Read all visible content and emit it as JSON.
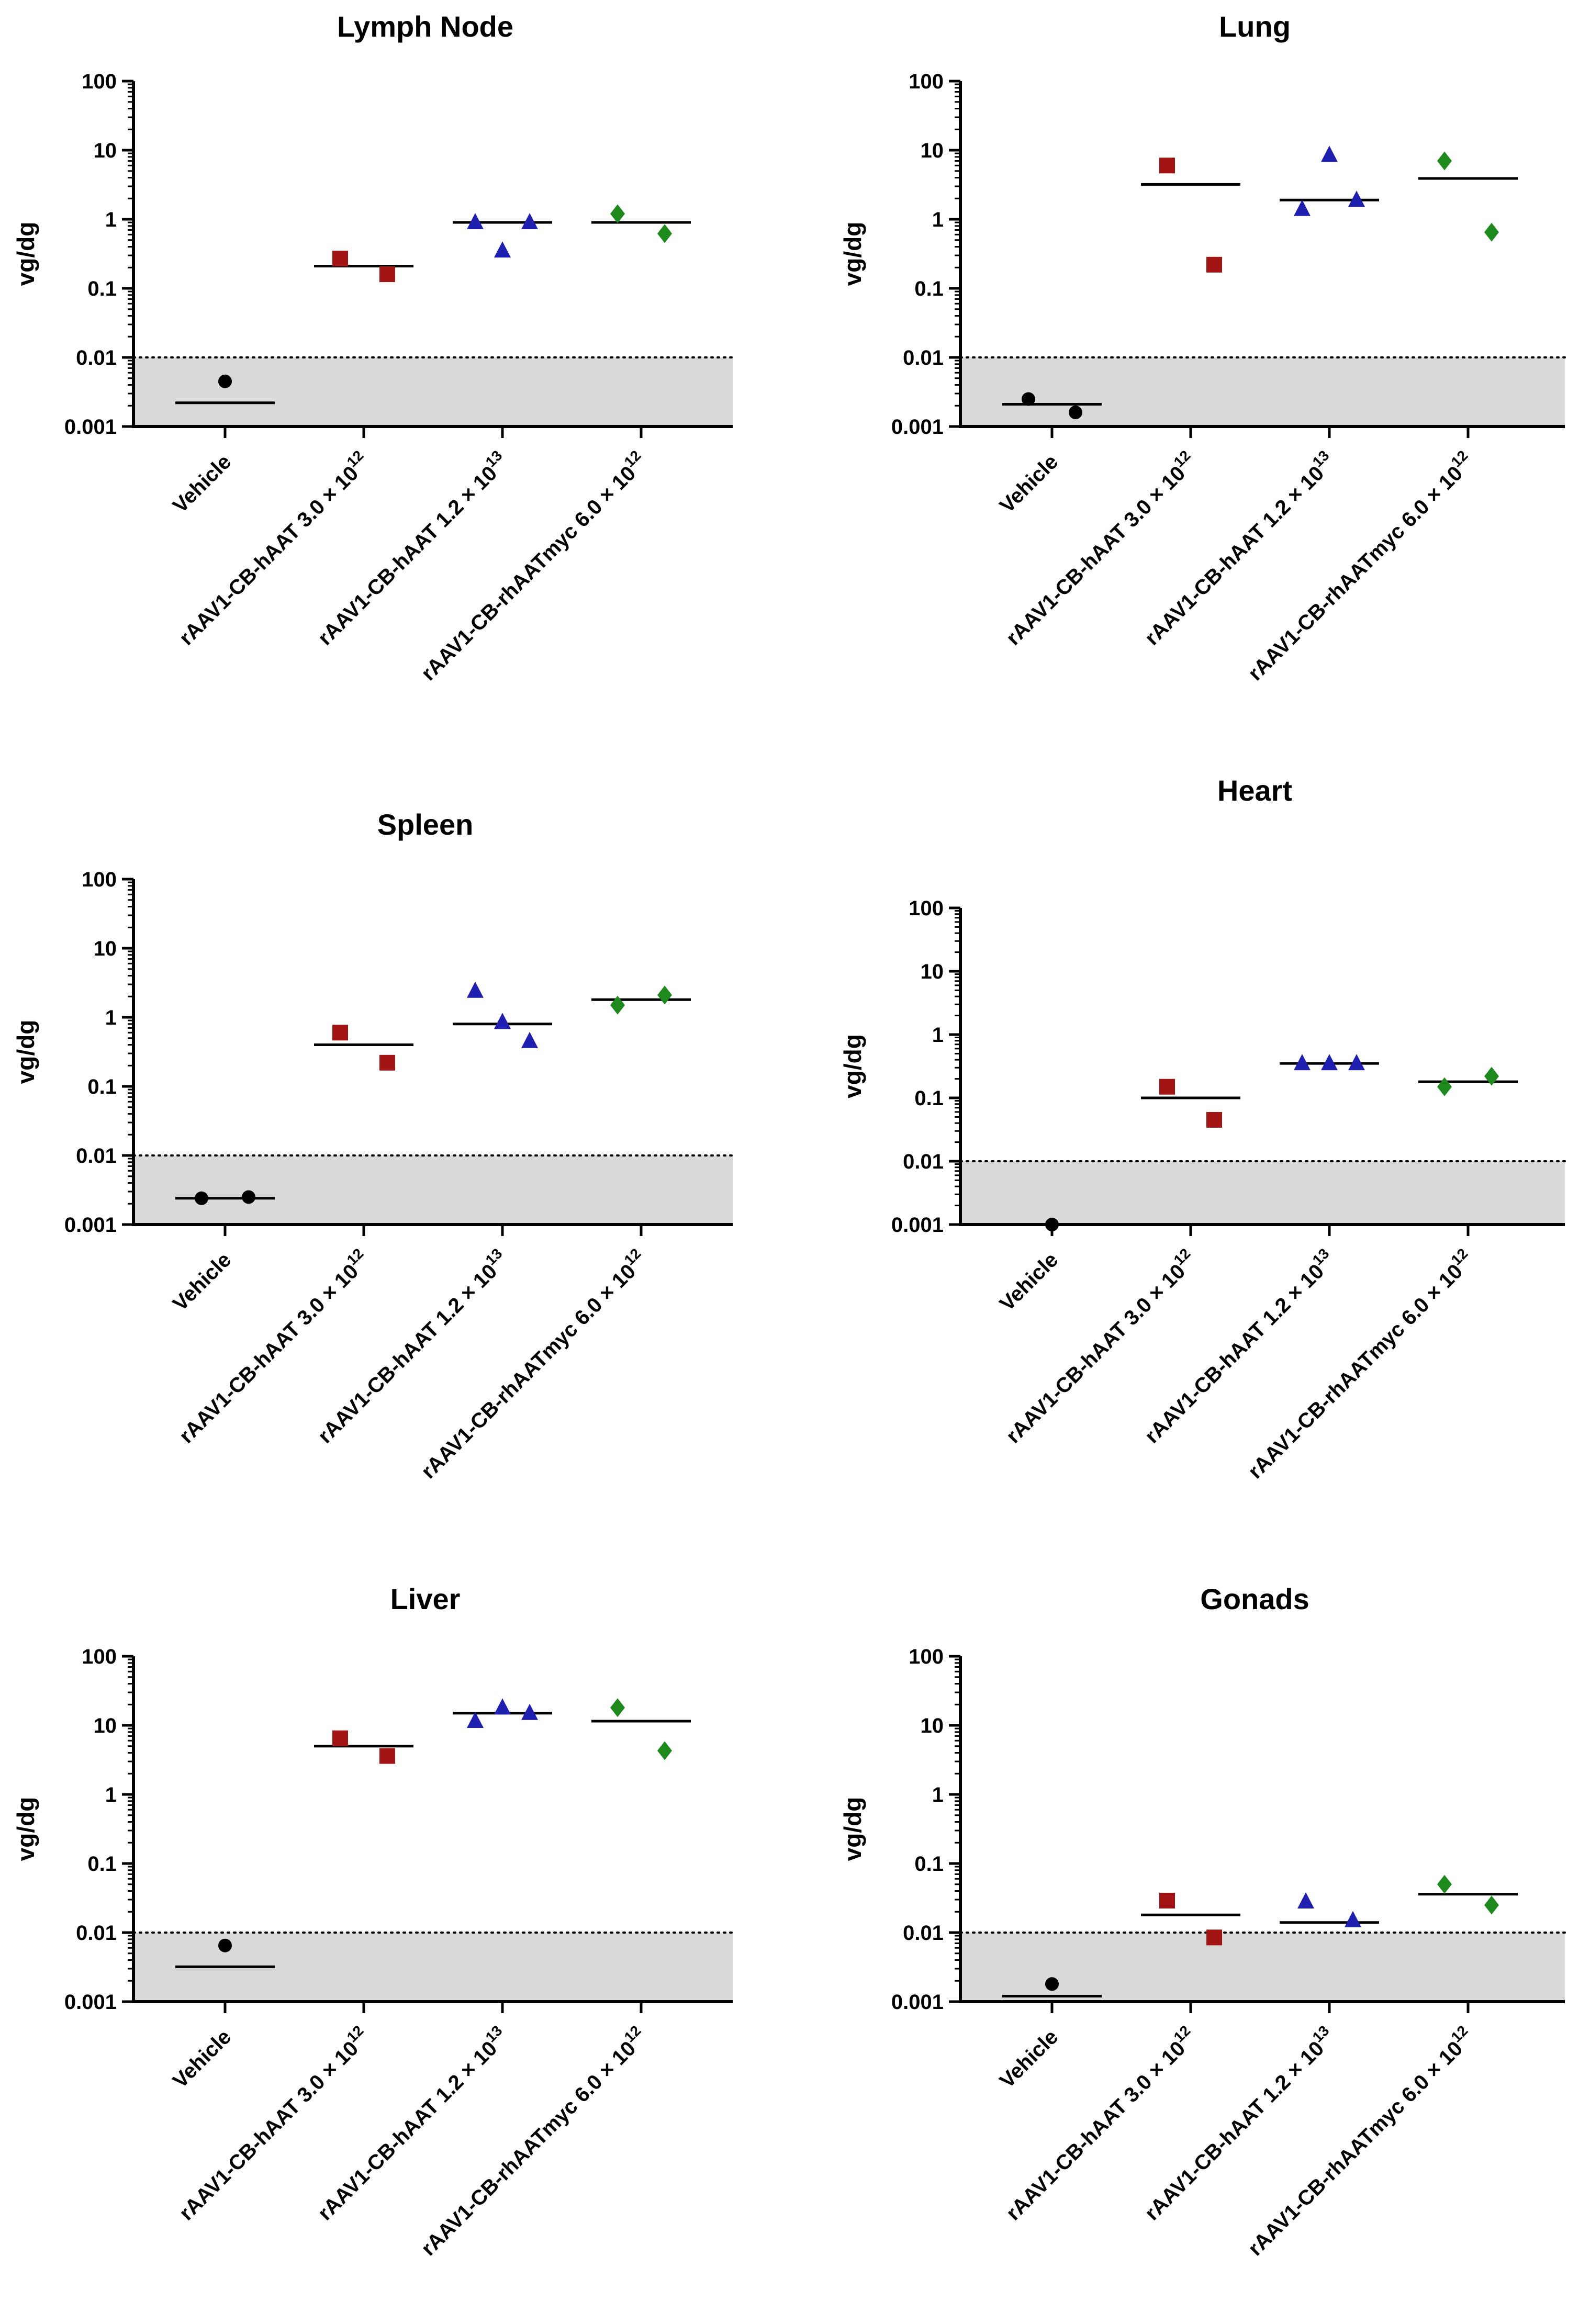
{
  "figure": {
    "y_axis_ticks": [
      "100",
      "10",
      "1",
      "0.1",
      "0.01",
      "0.001"
    ]
  },
  "chart_data": [
    {
      "type": "scatter",
      "title": "Lymph Node",
      "ylabel": "vg/dg",
      "yscale": "log",
      "ylim": [
        0.001,
        100
      ],
      "lloq": 0.01,
      "categories": [
        {
          "name": "Vehicle",
          "dose": "",
          "exp": ""
        },
        {
          "name": "rAAV1-CB-hAAT",
          "dose": "3.0 × 10",
          "exp": "12"
        },
        {
          "name": "rAAV1-CB-hAAT",
          "dose": "1.2 × 10",
          "exp": "13"
        },
        {
          "name": "rAAV1-CB-rhAATmyc",
          "dose": "6.0 × 10",
          "exp": "12"
        }
      ],
      "series": [
        {
          "name": "Vehicle",
          "marker": "circle",
          "color": "#000000",
          "points": [
            0.0045
          ],
          "mean": 0.0022
        },
        {
          "name": "rAAV1-CB-hAAT 3.0 × 10^12",
          "marker": "square",
          "color": "#a31515",
          "points": [
            0.27,
            0.16
          ],
          "mean": 0.21
        },
        {
          "name": "rAAV1-CB-hAAT 1.2 × 10^13",
          "marker": "triangle",
          "color": "#1f1fb0",
          "points": [
            0.9,
            0.35,
            0.9
          ],
          "mean": 0.9
        },
        {
          "name": "rAAV1-CB-rhAATmyc 6.0 × 10^12",
          "marker": "diamond",
          "color": "#1e8a1e",
          "points": [
            1.2,
            0.62
          ],
          "mean": 0.9
        }
      ]
    },
    {
      "type": "scatter",
      "title": "Lung",
      "ylabel": "vg/dg",
      "yscale": "log",
      "ylim": [
        0.001,
        100
      ],
      "lloq": 0.01,
      "categories": [
        {
          "name": "Vehicle",
          "dose": "",
          "exp": ""
        },
        {
          "name": "rAAV1-CB-hAAT",
          "dose": "3.0 × 10",
          "exp": "12"
        },
        {
          "name": "rAAV1-CB-hAAT",
          "dose": "1.2 × 10",
          "exp": "13"
        },
        {
          "name": "rAAV1-CB-rhAATmyc",
          "dose": "6.0 × 10",
          "exp": "12"
        }
      ],
      "series": [
        {
          "name": "Vehicle",
          "marker": "circle",
          "color": "#000000",
          "points": [
            0.0025,
            0.0016
          ],
          "mean": 0.0021
        },
        {
          "name": "rAAV1-CB-hAAT 3.0 × 10^12",
          "marker": "square",
          "color": "#a31515",
          "points": [
            6.0,
            0.22
          ],
          "mean": 3.2
        },
        {
          "name": "rAAV1-CB-hAAT 1.2 × 10^13",
          "marker": "triangle",
          "color": "#1f1fb0",
          "points": [
            1.4,
            8.5,
            1.9
          ],
          "mean": 1.9
        },
        {
          "name": "rAAV1-CB-rhAATmyc 6.0 × 10^12",
          "marker": "diamond",
          "color": "#1e8a1e",
          "points": [
            7.0,
            0.65
          ],
          "mean": 3.9
        }
      ]
    },
    {
      "type": "scatter",
      "title": "Spleen",
      "ylabel": "vg/dg",
      "yscale": "log",
      "ylim": [
        0.001,
        100
      ],
      "lloq": 0.01,
      "categories": [
        {
          "name": "Vehicle",
          "dose": "",
          "exp": ""
        },
        {
          "name": "rAAV1-CB-hAAT",
          "dose": "3.0 × 10",
          "exp": "12"
        },
        {
          "name": "rAAV1-CB-hAAT",
          "dose": "1.2 × 10",
          "exp": "13"
        },
        {
          "name": "rAAV1-CB-rhAATmyc",
          "dose": "6.0 × 10",
          "exp": "12"
        }
      ],
      "series": [
        {
          "name": "Vehicle",
          "marker": "circle",
          "color": "#000000",
          "points": [
            0.0024,
            0.0025
          ],
          "mean": 0.0024
        },
        {
          "name": "rAAV1-CB-hAAT 3.0 × 10^12",
          "marker": "square",
          "color": "#a31515",
          "points": [
            0.6,
            0.22
          ],
          "mean": 0.4
        },
        {
          "name": "rAAV1-CB-hAAT 1.2 × 10^13",
          "marker": "triangle",
          "color": "#1f1fb0",
          "points": [
            2.4,
            0.85,
            0.45
          ],
          "mean": 0.8
        },
        {
          "name": "rAAV1-CB-rhAATmyc 6.0 × 10^12",
          "marker": "diamond",
          "color": "#1e8a1e",
          "points": [
            1.5,
            2.1
          ],
          "mean": 1.8
        }
      ]
    },
    {
      "type": "scatter",
      "title": "Heart",
      "ylabel": "vg/dg",
      "yscale": "log",
      "ylim": [
        0.001,
        100
      ],
      "lloq": 0.01,
      "categories": [
        {
          "name": "Vehicle",
          "dose": "",
          "exp": ""
        },
        {
          "name": "rAAV1-CB-hAAT",
          "dose": "3.0 × 10",
          "exp": "12"
        },
        {
          "name": "rAAV1-CB-hAAT",
          "dose": "1.2 × 10",
          "exp": "13"
        },
        {
          "name": "rAAV1-CB-rhAATmyc",
          "dose": "6.0 × 10",
          "exp": "12"
        }
      ],
      "series": [
        {
          "name": "Vehicle",
          "marker": "circle",
          "color": "#000000",
          "points": [
            0.001
          ],
          "mean": null
        },
        {
          "name": "rAAV1-CB-hAAT 3.0 × 10^12",
          "marker": "square",
          "color": "#a31515",
          "points": [
            0.15,
            0.045
          ],
          "mean": 0.1
        },
        {
          "name": "rAAV1-CB-hAAT 1.2 × 10^13",
          "marker": "triangle",
          "color": "#1f1fb0",
          "points": [
            0.35,
            0.35,
            0.35
          ],
          "mean": 0.35
        },
        {
          "name": "rAAV1-CB-rhAATmyc 6.0 × 10^12",
          "marker": "diamond",
          "color": "#1e8a1e",
          "points": [
            0.15,
            0.22
          ],
          "mean": 0.18
        }
      ]
    },
    {
      "type": "scatter",
      "title": "Liver",
      "ylabel": "vg/dg",
      "yscale": "log",
      "ylim": [
        0.001,
        100
      ],
      "lloq": 0.01,
      "categories": [
        {
          "name": "Vehicle",
          "dose": "",
          "exp": ""
        },
        {
          "name": "rAAV1-CB-hAAT",
          "dose": "3.0 × 10",
          "exp": "12"
        },
        {
          "name": "rAAV1-CB-hAAT",
          "dose": "1.2 × 10",
          "exp": "13"
        },
        {
          "name": "rAAV1-CB-rhAATmyc",
          "dose": "6.0 × 10",
          "exp": "12"
        }
      ],
      "series": [
        {
          "name": "Vehicle",
          "marker": "circle",
          "color": "#000000",
          "points": [
            0.0065
          ],
          "mean": 0.0032
        },
        {
          "name": "rAAV1-CB-hAAT 3.0 × 10^12",
          "marker": "square",
          "color": "#a31515",
          "points": [
            6.5,
            3.6
          ],
          "mean": 5.0
        },
        {
          "name": "rAAV1-CB-hAAT 1.2 × 10^13",
          "marker": "triangle",
          "color": "#1f1fb0",
          "points": [
            11.5,
            18.0,
            15.0
          ],
          "mean": 15.0
        },
        {
          "name": "rAAV1-CB-rhAATmyc 6.0 × 10^12",
          "marker": "diamond",
          "color": "#1e8a1e",
          "points": [
            18.0,
            4.3
          ],
          "mean": 11.5
        }
      ]
    },
    {
      "type": "scatter",
      "title": "Gonads",
      "ylabel": "vg/dg",
      "yscale": "log",
      "ylim": [
        0.001,
        100
      ],
      "lloq": 0.01,
      "categories": [
        {
          "name": "Vehicle",
          "dose": "",
          "exp": ""
        },
        {
          "name": "rAAV1-CB-hAAT",
          "dose": "3.0 × 10",
          "exp": "12"
        },
        {
          "name": "rAAV1-CB-hAAT",
          "dose": "1.2 × 10",
          "exp": "13"
        },
        {
          "name": "rAAV1-CB-rhAATmyc",
          "dose": "6.0 × 10",
          "exp": "12"
        }
      ],
      "series": [
        {
          "name": "Vehicle",
          "marker": "circle",
          "color": "#000000",
          "points": [
            0.0018
          ],
          "mean": 0.0012
        },
        {
          "name": "rAAV1-CB-hAAT 3.0 × 10^12",
          "marker": "square",
          "color": "#a31515",
          "points": [
            0.029,
            0.0085
          ],
          "mean": 0.018
        },
        {
          "name": "rAAV1-CB-hAAT 1.2 × 10^13",
          "marker": "triangle",
          "color": "#1f1fb0",
          "points": [
            0.028,
            0.015
          ],
          "mean": 0.014
        },
        {
          "name": "rAAV1-CB-rhAATmyc 6.0 × 10^12",
          "marker": "diamond",
          "color": "#1e8a1e",
          "points": [
            0.05,
            0.025
          ],
          "mean": 0.036
        }
      ]
    }
  ]
}
